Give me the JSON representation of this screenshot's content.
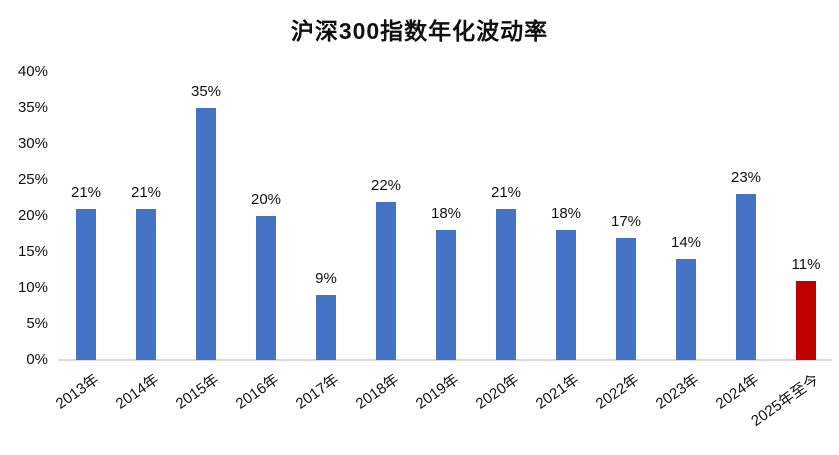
{
  "chart_data": {
    "type": "bar",
    "title": "沪深300指数年化波动率",
    "categories": [
      "2013年",
      "2014年",
      "2015年",
      "2016年",
      "2017年",
      "2018年",
      "2019年",
      "2020年",
      "2021年",
      "2022年",
      "2023年",
      "2024年",
      "2025年至今"
    ],
    "values": [
      21,
      21,
      35,
      20,
      9,
      22,
      18,
      21,
      18,
      17,
      14,
      23,
      11
    ],
    "data_labels": [
      "21%",
      "21%",
      "35%",
      "20%",
      "9%",
      "22%",
      "18%",
      "21%",
      "18%",
      "17%",
      "14%",
      "23%",
      "11%"
    ],
    "y_ticks": [
      "0%",
      "5%",
      "10%",
      "15%",
      "20%",
      "25%",
      "30%",
      "35%",
      "40%"
    ],
    "y_tick_values": [
      0,
      5,
      10,
      15,
      20,
      25,
      30,
      35,
      40
    ],
    "ylim": [
      0,
      40
    ],
    "xlabel": "",
    "ylabel": "",
    "grid": false,
    "legend": null,
    "bar_color": "#4472C4",
    "highlight_color": "#C00000",
    "highlight_index": 12,
    "axis_line_color": "#D9D9D9",
    "text_color": "#111111"
  }
}
